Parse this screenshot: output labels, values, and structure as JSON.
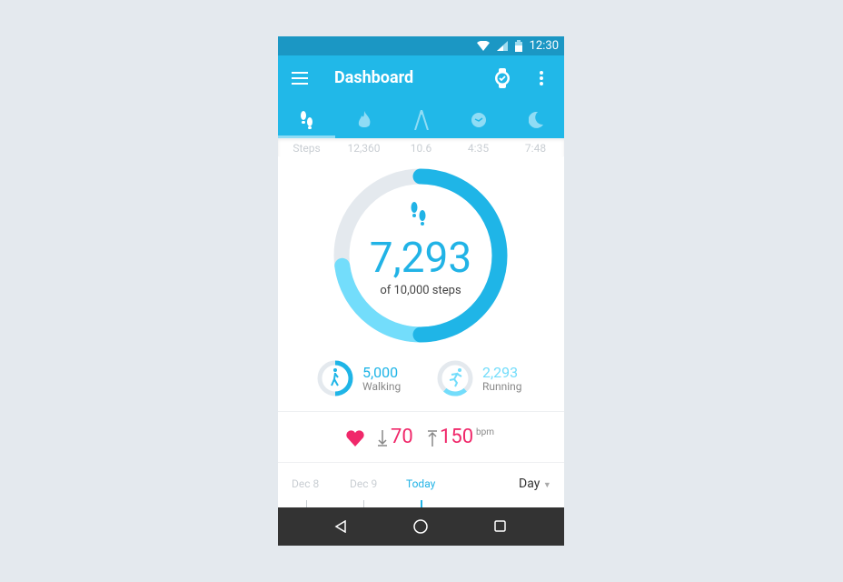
{
  "status": {
    "time": "12:30",
    "icons": [
      "wifi-icon",
      "signal-icon",
      "battery-icon"
    ]
  },
  "appbar": {
    "title": "Dashboard",
    "icons": [
      "menu-icon",
      "watch-check-icon",
      "more-vert-icon"
    ]
  },
  "tabs": [
    {
      "icon": "footsteps-icon",
      "value": "Steps",
      "active": true
    },
    {
      "icon": "flame-icon",
      "value": "12,360"
    },
    {
      "icon": "compass-distance-icon",
      "value": "10.6"
    },
    {
      "icon": "clock-icon",
      "value": "4:35"
    },
    {
      "icon": "moon-icon",
      "value": "7:48"
    }
  ],
  "steps": {
    "value": "7,293",
    "goal_text": "of 10,000 steps",
    "goal": 10000,
    "walking": 5000,
    "running": 2293
  },
  "walking": {
    "value": "5,000",
    "label": "Walking",
    "fraction": 0.5
  },
  "running": {
    "value": "2,293",
    "label": "Running",
    "fraction": 0.23
  },
  "heart": {
    "min": "70",
    "max": "150",
    "unit": "bpm"
  },
  "dates": {
    "items": [
      "Dec 8",
      "Dec 9",
      "Today"
    ],
    "period": "Day"
  },
  "colors": {
    "primary": "#21b8e8",
    "dark": "#1b97c4",
    "running": "#73ddfb",
    "track": "#e4e9ee",
    "heart": "#f0286a"
  }
}
